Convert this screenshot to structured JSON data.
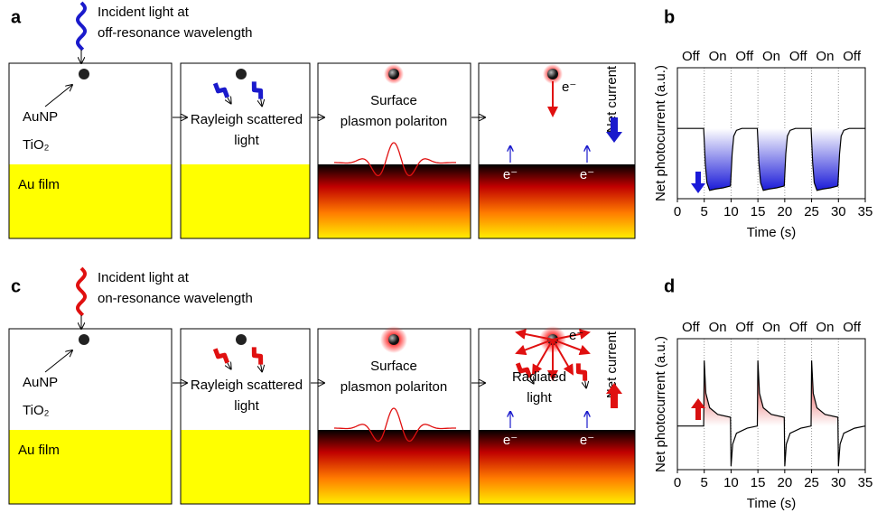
{
  "figure": {
    "panel_labels": [
      "a",
      "b",
      "c",
      "d"
    ],
    "rows": [
      {
        "color": "#1a1acc",
        "incident": [
          "Incident light at",
          "off-resonance wavelength"
        ],
        "np_label": "AuNP",
        "oxide": "TiO₂",
        "film": "Au film",
        "scattered": [
          "Rayleigh scattered",
          "light"
        ],
        "spp": [
          "Surface",
          "plasmon polariton"
        ],
        "electron": "e⁻",
        "net_current": "Net current"
      },
      {
        "color": "#e01010",
        "incident": [
          "Incident light at",
          "on-resonance wavelength"
        ],
        "np_label": "AuNP",
        "oxide": "TiO₂",
        "film": "Au film",
        "scattered": [
          "Rayleigh scattered",
          "light"
        ],
        "spp": [
          "Surface",
          "plasmon polariton"
        ],
        "electron": "e⁻",
        "net_current": "Net current",
        "radiated": [
          "Radiated",
          "light"
        ]
      }
    ]
  },
  "chart_data": [
    {
      "type": "line",
      "xlabel": "Time (s)",
      "ylabel": "Net photocurrent (a.u.)",
      "x": [
        0,
        4.9,
        5.2,
        5.5,
        6,
        7,
        8.5,
        9.9,
        10.2,
        10.5,
        11,
        12,
        14.9,
        15.2,
        15.5,
        16,
        17,
        18.5,
        19.9,
        20.2,
        20.5,
        21,
        22,
        24.9,
        25.2,
        25.5,
        26,
        27,
        28.5,
        29.9,
        30.2,
        30.5,
        31,
        32,
        35
      ],
      "series": [
        {
          "color": "#000000",
          "values": [
            0,
            0,
            -0.55,
            -0.85,
            -0.97,
            -0.95,
            -0.93,
            -0.9,
            -0.4,
            -0.12,
            -0.03,
            0,
            0,
            -0.55,
            -0.85,
            -0.97,
            -0.95,
            -0.93,
            -0.9,
            -0.4,
            -0.12,
            -0.03,
            0,
            0,
            -0.55,
            -0.85,
            -0.97,
            -0.95,
            -0.93,
            -0.9,
            -0.4,
            -0.12,
            -0.03,
            0,
            0
          ]
        }
      ],
      "fill_color": "#1a1ad8",
      "xlim": [
        0,
        35
      ],
      "xticks": [
        0,
        5,
        10,
        15,
        20,
        25,
        30,
        35
      ],
      "ylim": [
        -1.1,
        0.95
      ],
      "grid": true,
      "annotations": [
        {
          "text": "Off",
          "x": 2.5
        },
        {
          "text": "On",
          "x": 7.5
        },
        {
          "text": "Off",
          "x": 12.5
        },
        {
          "text": "On",
          "x": 17.5
        },
        {
          "text": "Off",
          "x": 22.5
        },
        {
          "text": "On",
          "x": 27.5
        },
        {
          "text": "Off",
          "x": 32.5
        }
      ]
    },
    {
      "type": "line",
      "xlabel": "Time (s)",
      "ylabel": "Net photocurrent (a.u.)",
      "x": [
        0,
        4.9,
        5,
        5.3,
        6,
        7.5,
        9.9,
        10,
        10.3,
        11,
        13,
        14.9,
        15,
        15.3,
        16,
        17.5,
        19.9,
        20,
        20.3,
        21,
        23,
        24.9,
        25,
        25.3,
        26,
        27.5,
        29.9,
        30,
        30.3,
        31,
        33,
        35
      ],
      "series": [
        {
          "color": "#000000",
          "values": [
            0,
            0,
            0.9,
            0.45,
            0.25,
            0.16,
            0.12,
            -0.55,
            -0.25,
            -0.1,
            -0.03,
            0,
            0.9,
            0.45,
            0.25,
            0.16,
            0.12,
            -0.55,
            -0.25,
            -0.1,
            -0.03,
            0,
            0.9,
            0.45,
            0.25,
            0.16,
            0.12,
            -0.55,
            -0.25,
            -0.1,
            -0.03,
            0
          ]
        }
      ],
      "fill_color": "#d81010",
      "xlim": [
        0,
        35
      ],
      "xticks": [
        0,
        5,
        10,
        15,
        20,
        25,
        30,
        35
      ],
      "ylim": [
        -0.6,
        1.2
      ],
      "grid": true,
      "annotations": [
        {
          "text": "Off",
          "x": 2.5
        },
        {
          "text": "On",
          "x": 7.5
        },
        {
          "text": "Off",
          "x": 12.5
        },
        {
          "text": "On",
          "x": 17.5
        },
        {
          "text": "Off",
          "x": 22.5
        },
        {
          "text": "On",
          "x": 27.5
        },
        {
          "text": "Off",
          "x": 32.5
        }
      ]
    }
  ]
}
